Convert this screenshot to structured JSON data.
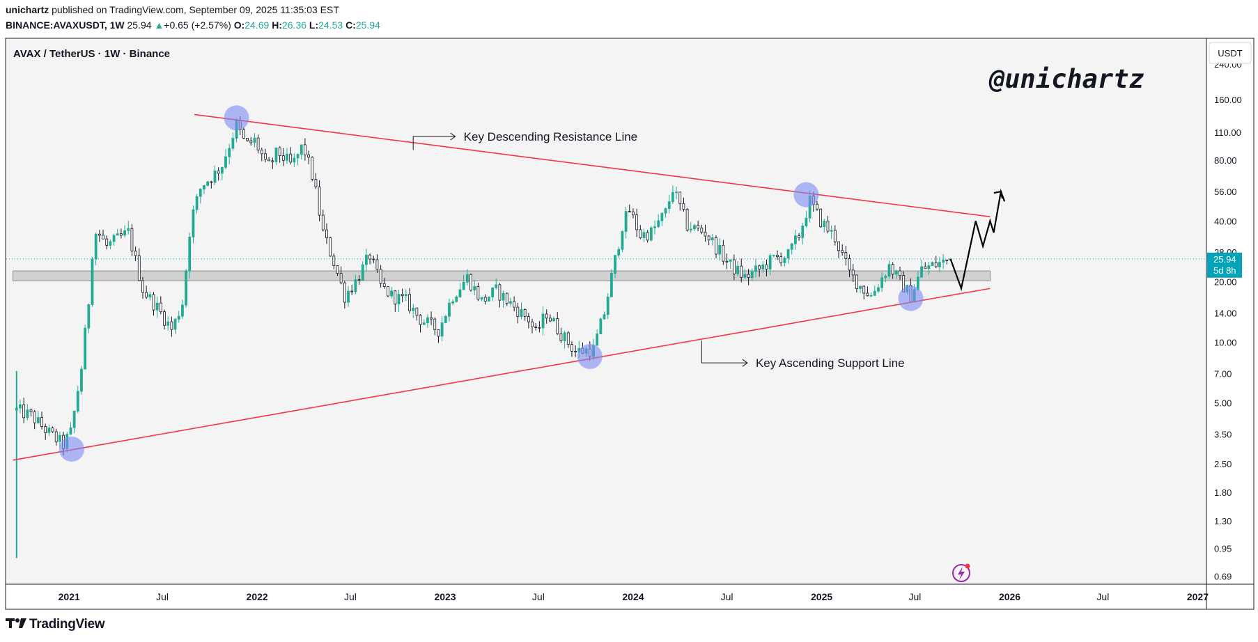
{
  "header": {
    "author": "unichartz",
    "published_text": "published on TradingView.com, September 09, 2025 11:35:03 EST",
    "symbol": "BINANCE:AVAXUSDT, 1W",
    "last": "25.94",
    "change_arrow": "▲",
    "change": "+0.65 (+2.57%)",
    "o_label": "O:",
    "o_value": "24.69",
    "h_label": "H:",
    "h_value": "26.36",
    "l_label": "L:",
    "l_value": "24.53",
    "c_label": "C:",
    "c_value": "25.94"
  },
  "footer": {
    "logo_text": "TradingView"
  },
  "colors": {
    "up": "#22ab94",
    "down": "#131722",
    "trendline": "#f23645",
    "pivot": "#7b8bf2",
    "price_tag": "#00a3b8",
    "plot_bg": "#f4f4f4"
  },
  "chart_data": {
    "type": "candlestick",
    "title": "AVAX / TetherUS · 1W · Binance",
    "watermark": "@unichartz",
    "y_scale": "log",
    "y_unit_label": "USDT",
    "ylim": [
      0.63,
      320
    ],
    "x_range": [
      "2020-09-01",
      "2027-01-18"
    ],
    "y_ticks": [
      "240.00",
      "160.00",
      "110.00",
      "80.00",
      "56.00",
      "40.00",
      "28.00",
      "20.00",
      "14.00",
      "10.00",
      "7.00",
      "5.00",
      "3.50",
      "2.50",
      "1.80",
      "1.30",
      "0.95",
      "0.69"
    ],
    "x_ticks": [
      {
        "label": "2021",
        "date": "2021-01-01",
        "bold": true
      },
      {
        "label": "Jul",
        "date": "2021-07-01",
        "bold": false
      },
      {
        "label": "2022",
        "date": "2022-01-01",
        "bold": true
      },
      {
        "label": "Jul",
        "date": "2022-07-01",
        "bold": false
      },
      {
        "label": "2023",
        "date": "2023-01-01",
        "bold": true
      },
      {
        "label": "Jul",
        "date": "2023-07-01",
        "bold": false
      },
      {
        "label": "2024",
        "date": "2024-01-01",
        "bold": true
      },
      {
        "label": "Jul",
        "date": "2024-07-01",
        "bold": false
      },
      {
        "label": "2025",
        "date": "2025-01-01",
        "bold": true
      },
      {
        "label": "Jul",
        "date": "2025-07-01",
        "bold": false
      },
      {
        "label": "2026",
        "date": "2026-01-01",
        "bold": true
      },
      {
        "label": "Jul",
        "date": "2026-07-01",
        "bold": false
      },
      {
        "label": "2027",
        "date": "2027-01-01",
        "bold": true
      }
    ],
    "current_price": "25.94",
    "countdown": "5d 8h",
    "anchors": [
      [
        "2020-09-21",
        4.6
      ],
      [
        "2020-10-20",
        4.3
      ],
      [
        "2020-11-25",
        3.5
      ],
      [
        "2020-12-21",
        3.1
      ],
      [
        "2021-01-05",
        3.6
      ],
      [
        "2021-01-25",
        7.5
      ],
      [
        "2021-02-08",
        16
      ],
      [
        "2021-02-15",
        28
      ],
      [
        "2021-02-23",
        36
      ],
      [
        "2021-03-15",
        30
      ],
      [
        "2021-04-10",
        33
      ],
      [
        "2021-04-26",
        35
      ],
      [
        "2021-05-25",
        18
      ],
      [
        "2021-06-20",
        15
      ],
      [
        "2021-07-20",
        11.5
      ],
      [
        "2021-08-10",
        16
      ],
      [
        "2021-08-25",
        40
      ],
      [
        "2021-09-15",
        60
      ],
      [
        "2021-10-10",
        68
      ],
      [
        "2021-10-25",
        76
      ],
      [
        "2021-11-22",
        120
      ],
      [
        "2021-12-10",
        95
      ],
      [
        "2021-12-27",
        100
      ],
      [
        "2022-01-10",
        85
      ],
      [
        "2022-01-20",
        72
      ],
      [
        "2022-02-10",
        88
      ],
      [
        "2022-03-10",
        75
      ],
      [
        "2022-03-31",
        95
      ],
      [
        "2022-04-20",
        65
      ],
      [
        "2022-05-09",
        35
      ],
      [
        "2022-05-30",
        25
      ],
      [
        "2022-06-20",
        17
      ],
      [
        "2022-07-11",
        20
      ],
      [
        "2022-08-08",
        27
      ],
      [
        "2022-08-29",
        19
      ],
      [
        "2022-09-19",
        17
      ],
      [
        "2022-10-17",
        16
      ],
      [
        "2022-11-14",
        13
      ],
      [
        "2022-12-19",
        11.5
      ],
      [
        "2023-01-16",
        17
      ],
      [
        "2023-02-13",
        21
      ],
      [
        "2023-03-13",
        16
      ],
      [
        "2023-04-10",
        18
      ],
      [
        "2023-05-15",
        15
      ],
      [
        "2023-06-12",
        13
      ],
      [
        "2023-06-26",
        11
      ],
      [
        "2023-07-17",
        14
      ],
      [
        "2023-08-14",
        11
      ],
      [
        "2023-09-11",
        9
      ],
      [
        "2023-10-16",
        9.2
      ],
      [
        "2023-11-06",
        14
      ],
      [
        "2023-11-20",
        21
      ],
      [
        "2023-12-11",
        38
      ],
      [
        "2023-12-25",
        45
      ],
      [
        "2024-01-15",
        34
      ],
      [
        "2024-02-05",
        35
      ],
      [
        "2024-03-04",
        44
      ],
      [
        "2024-03-18",
        58
      ],
      [
        "2024-04-15",
        38
      ],
      [
        "2024-05-20",
        35
      ],
      [
        "2024-06-17",
        28
      ],
      [
        "2024-07-08",
        24
      ],
      [
        "2024-08-05",
        21
      ],
      [
        "2024-09-02",
        23
      ],
      [
        "2024-09-30",
        26
      ],
      [
        "2024-10-28",
        27
      ],
      [
        "2024-11-18",
        34
      ],
      [
        "2024-12-09",
        50
      ],
      [
        "2024-12-30",
        40
      ],
      [
        "2025-01-27",
        33
      ],
      [
        "2025-02-24",
        22
      ],
      [
        "2025-03-17",
        19
      ],
      [
        "2025-04-07",
        17
      ],
      [
        "2025-05-12",
        24
      ],
      [
        "2025-06-02",
        20
      ],
      [
        "2025-06-23",
        17
      ],
      [
        "2025-07-14",
        23
      ],
      [
        "2025-08-04",
        24
      ],
      [
        "2025-08-25",
        25
      ],
      [
        "2025-09-08",
        25.94
      ]
    ],
    "trendlines": [
      {
        "name": "Key Descending Resistance Line",
        "start": [
          "2021-09-01",
          135
        ],
        "end": [
          "2025-11-24",
          42
        ],
        "color": "#f23645"
      },
      {
        "name": "Key Ascending Support Line",
        "start": [
          "2020-09-14",
          2.6
        ],
        "end": [
          "2025-11-24",
          18.5
        ],
        "color": "#f23645"
      }
    ],
    "support_zone": {
      "from": "2020-09-14",
      "to": "2025-11-24",
      "low": 20.2,
      "high": 22.6
    },
    "pivots": [
      {
        "date": "2021-01-06",
        "price": 2.95
      },
      {
        "date": "2021-11-22",
        "price": 130
      },
      {
        "date": "2023-10-09",
        "price": 8.5
      },
      {
        "date": "2024-12-02",
        "price": 54
      },
      {
        "date": "2025-06-23",
        "price": 16.5
      }
    ],
    "annotations": [
      {
        "text": "Key Descending Resistance Line",
        "anchor": [
          "2022-10-31",
          90
        ],
        "label_at": [
          "2023-02-06",
          105
        ]
      },
      {
        "text": "Key Ascending Support Line",
        "anchor": [
          "2024-05-13",
          10.2
        ],
        "label_at": [
          "2024-08-26",
          7.9
        ]
      }
    ],
    "projection_path": [
      [
        "2025-09-08",
        25.94
      ],
      [
        "2025-09-29",
        18.5
      ],
      [
        "2025-10-27",
        40
      ],
      [
        "2025-11-10",
        30
      ],
      [
        "2025-11-24",
        40
      ],
      [
        "2025-12-01",
        35
      ],
      [
        "2025-12-15",
        56
      ],
      [
        "2025-12-22",
        50
      ]
    ]
  }
}
